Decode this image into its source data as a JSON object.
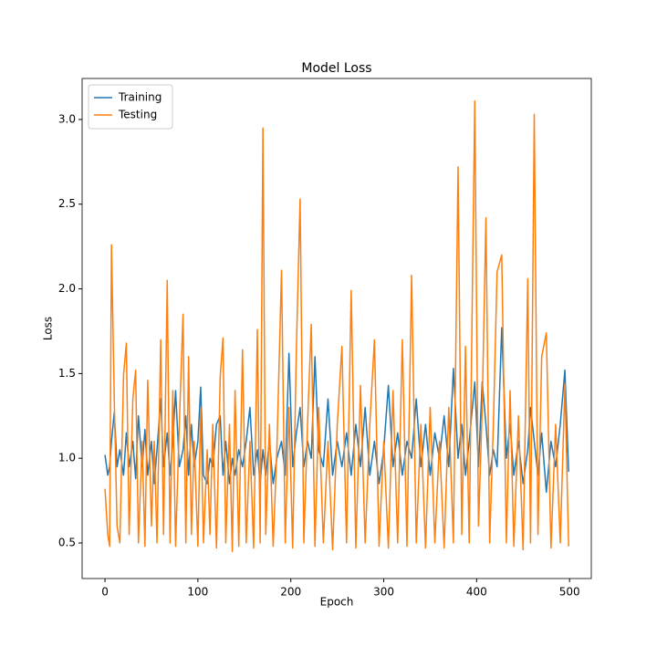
{
  "chart_data": {
    "type": "line",
    "title": "Model Loss",
    "x_label": "Epoch",
    "y_label": "Loss",
    "x": [
      0,
      3,
      5,
      7,
      10,
      13,
      16,
      20,
      23,
      26,
      30,
      33,
      36,
      40,
      43,
      46,
      50,
      53,
      56,
      60,
      63,
      67,
      70,
      73,
      76,
      80,
      84,
      87,
      90,
      93,
      96,
      100,
      103,
      106,
      110,
      113,
      116,
      120,
      124,
      127,
      130,
      134,
      137,
      140,
      144,
      148,
      152,
      156,
      160,
      164,
      167,
      170,
      173,
      177,
      181,
      185,
      190,
      194,
      198,
      202,
      206,
      210,
      214,
      218,
      222,
      226,
      230,
      235,
      240,
      245,
      250,
      255,
      260,
      265,
      270,
      275,
      280,
      285,
      290,
      295,
      300,
      305,
      310,
      315,
      320,
      325,
      330,
      335,
      340,
      345,
      350,
      355,
      360,
      365,
      370,
      375,
      380,
      384,
      388,
      392,
      398,
      402,
      406,
      410,
      414,
      418,
      422,
      427,
      432,
      436,
      440,
      445,
      450,
      455,
      458,
      462,
      466,
      470,
      475,
      480,
      485,
      490,
      495,
      499
    ],
    "series": [
      {
        "name": "Training",
        "color": "#1f77b4",
        "values": [
          1.02,
          0.9,
          0.95,
          1.1,
          1.27,
          0.95,
          1.05,
          0.9,
          1.15,
          0.95,
          1.1,
          0.88,
          1.25,
          0.95,
          1.17,
          0.9,
          1.1,
          0.85,
          1.05,
          1.35,
          0.95,
          1.15,
          0.9,
          1.1,
          1.4,
          0.95,
          1.05,
          1.25,
          0.9,
          1.2,
          0.95,
          1.1,
          1.42,
          0.9,
          0.85,
          1.0,
          0.95,
          1.2,
          1.25,
          0.9,
          1.1,
          0.85,
          1.0,
          0.9,
          1.05,
          0.95,
          1.1,
          1.3,
          0.9,
          1.05,
          0.85,
          1.05,
          0.9,
          1.1,
          0.85,
          1.0,
          1.1,
          0.9,
          1.62,
          0.95,
          1.15,
          1.3,
          0.95,
          1.1,
          1.0,
          1.6,
          1.05,
          0.95,
          1.35,
          0.9,
          1.1,
          0.95,
          1.15,
          0.9,
          1.2,
          0.95,
          1.3,
          0.9,
          1.1,
          0.85,
          1.05,
          1.43,
          0.95,
          1.15,
          0.9,
          1.1,
          1.0,
          1.35,
          0.95,
          1.2,
          0.9,
          1.15,
          1.0,
          1.25,
          0.95,
          1.53,
          1.0,
          1.2,
          0.9,
          1.1,
          1.45,
          0.95,
          1.45,
          1.2,
          0.9,
          1.05,
          0.95,
          1.77,
          1.0,
          1.2,
          0.9,
          1.1,
          0.85,
          1.05,
          1.3,
          1.1,
          0.9,
          1.15,
          0.8,
          1.1,
          0.95,
          1.2,
          1.52,
          0.92
        ]
      },
      {
        "name": "Testing",
        "color": "#ff7f0e",
        "values": [
          0.82,
          0.55,
          0.48,
          2.26,
          1.35,
          0.6,
          0.5,
          1.49,
          1.68,
          0.55,
          1.35,
          1.52,
          0.5,
          1.1,
          0.48,
          1.46,
          0.6,
          1.1,
          0.5,
          1.7,
          0.55,
          2.05,
          0.5,
          1.4,
          0.48,
          1.2,
          1.85,
          0.5,
          1.6,
          0.55,
          1.1,
          0.48,
          1.3,
          0.5,
          1.05,
          0.55,
          1.2,
          0.47,
          1.48,
          1.71,
          0.5,
          1.2,
          0.45,
          1.4,
          0.48,
          1.64,
          0.5,
          1.1,
          0.47,
          1.76,
          0.5,
          2.95,
          0.55,
          1.2,
          0.48,
          1.05,
          2.11,
          0.5,
          1.3,
          0.47,
          1.65,
          2.53,
          0.5,
          1.2,
          1.79,
          0.48,
          1.3,
          0.5,
          1.1,
          0.46,
          1.2,
          1.66,
          0.5,
          1.99,
          0.47,
          1.43,
          0.5,
          1.2,
          1.7,
          0.48,
          1.1,
          0.47,
          1.4,
          0.5,
          1.7,
          0.48,
          2.08,
          0.5,
          1.2,
          0.47,
          1.3,
          0.5,
          1.1,
          0.47,
          1.3,
          0.5,
          2.72,
          0.55,
          1.66,
          0.5,
          3.11,
          0.6,
          1.3,
          2.42,
          0.5,
          1.2,
          2.1,
          2.2,
          0.5,
          1.4,
          0.48,
          1.25,
          0.46,
          2.06,
          0.5,
          3.03,
          0.55,
          1.6,
          1.74,
          0.47,
          1.2,
          0.5,
          1.44,
          0.48
        ]
      }
    ],
    "xlim": [
      -24.6,
      523.4
    ],
    "xticks": [
      0,
      100,
      200,
      300,
      400,
      500
    ],
    "ylim": [
      0.29,
      3.242
    ],
    "yticks": [
      0.5,
      {
        "value": 1.0,
        "label": "1.0"
      },
      1.5,
      {
        "value": 2.0,
        "label": "2.0"
      },
      2.5,
      {
        "value": 3.0,
        "label": "3.0"
      }
    ],
    "legend": "upper left",
    "grid": false
  }
}
